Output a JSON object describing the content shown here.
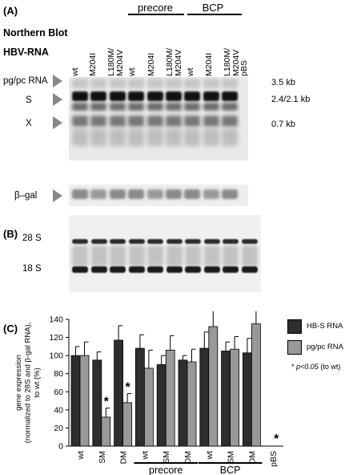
{
  "panels": {
    "a": "(A)",
    "b": "(B)",
    "c": "(C)"
  },
  "blot": {
    "title_line1": "Northern Blot",
    "title_line2": "HBV-RNA"
  },
  "lanes": [
    "wt",
    "M204I",
    "L180M/\nM204V",
    "wt",
    "M204I",
    "L180M/\nM204V",
    "wt",
    "M204I",
    "L180M/\nM204V",
    "pBS"
  ],
  "groups": {
    "precore": "precore",
    "bcp": "BCP"
  },
  "bands": {
    "pgpc": "pg/pc RNA",
    "s": "S",
    "x": "X",
    "bgal": "β–gal"
  },
  "sizes": {
    "pgpc": "3.5 kb",
    "s": "2.4/2.1 kb",
    "x": "0.7 kb"
  },
  "rrna": {
    "s28": "28 S",
    "s18": "18 S"
  },
  "colors": {
    "hbs": "#2e2e2e",
    "pgpc": "#999999",
    "arrow": "#888888"
  },
  "chart_data": {
    "type": "bar",
    "ylabel": "gene expression\n(normalized to 28S and β-gal RNA),\nto wt (%)",
    "ylim": [
      0,
      140
    ],
    "yticks": [
      0,
      20,
      40,
      60,
      80,
      100,
      120,
      140
    ],
    "categories": [
      "wt",
      "SM",
      "DM",
      "wt",
      "SM",
      "DM",
      "wt",
      "SM",
      "DM",
      "pBS"
    ],
    "category_groups": [
      {
        "label": "precore",
        "indices": [
          3,
          4,
          5
        ]
      },
      {
        "label": "BCP",
        "indices": [
          6,
          7,
          8
        ]
      }
    ],
    "series": [
      {
        "name": "HB-S RNA",
        "values": [
          100,
          95,
          117,
          108,
          90,
          95,
          108,
          105,
          103,
          null
        ],
        "errors": [
          10,
          9,
          16,
          15,
          10,
          5,
          18,
          10,
          16,
          null
        ]
      },
      {
        "name": "pg/pc RNA",
        "values": [
          100,
          32,
          48,
          86,
          106,
          93,
          132,
          107,
          135,
          null
        ],
        "errors": [
          15,
          10,
          10,
          20,
          16,
          14,
          20,
          14,
          17,
          null
        ]
      }
    ],
    "significance": [
      {
        "category_index": 1,
        "series": "pg/pc RNA",
        "mark": "*"
      },
      {
        "category_index": 2,
        "series": "pg/pc RNA",
        "mark": "*"
      },
      {
        "category_index": 9,
        "series": "pBS",
        "mark": "*"
      }
    ],
    "note": "* p<0.05 (to wt)",
    "note_mark": "*",
    "note_text": "p<0.05",
    "note_suffix": "(to wt)"
  }
}
